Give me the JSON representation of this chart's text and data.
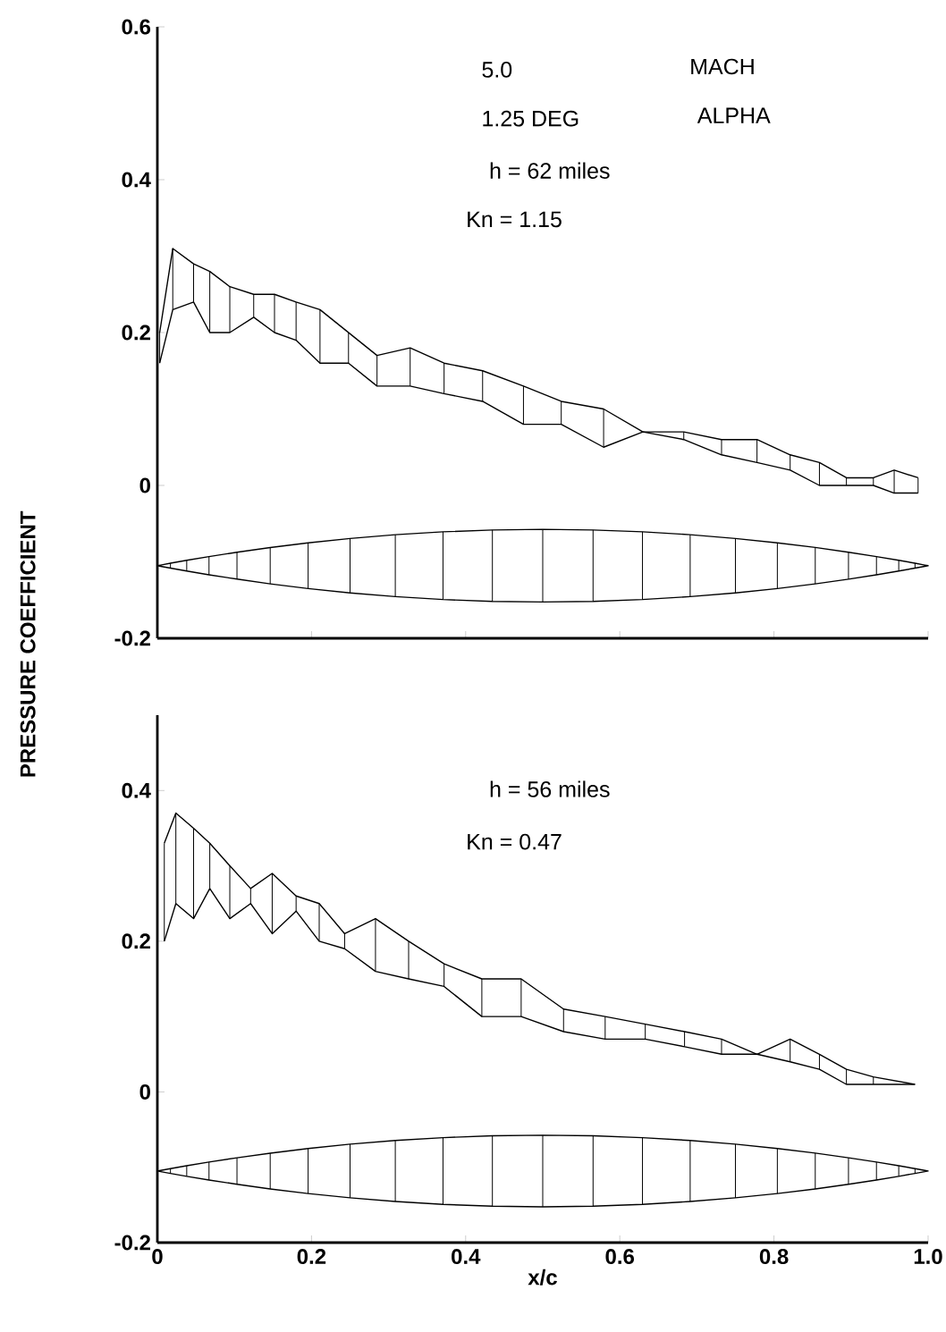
{
  "chart_data": [
    {
      "type": "line",
      "ylabel": "PRESSURE COEFFICIENT",
      "annotations": [
        "5.0",
        "MACH",
        "1.25 DEG",
        "ALPHA",
        "h = 62 miles",
        "Kn = 1.15"
      ],
      "xlim": [
        0,
        1
      ],
      "xticks": [
        0,
        0.2,
        0.4,
        0.6,
        0.8,
        1
      ],
      "ylim": [
        -0.2,
        0.6
      ],
      "yticks": [
        -0.2,
        0,
        0.2,
        0.4,
        0.6
      ],
      "tick_labels": "y",
      "marker": "none",
      "line_style": "solid",
      "series": [
        {
          "color": "#000000",
          "x": [
            0.003,
            0.02,
            0.047,
            0.068,
            0.094,
            0.125,
            0.152,
            0.18,
            0.211,
            0.248,
            0.285,
            0.328,
            0.372,
            0.422,
            0.475,
            0.524,
            0.579,
            0.63,
            0.683,
            0.732,
            0.778,
            0.821,
            0.859,
            0.894,
            0.929,
            0.956,
            0.987
          ],
          "values": [
            0.2,
            0.31,
            0.29,
            0.28,
            0.26,
            0.25,
            0.25,
            0.24,
            0.23,
            0.2,
            0.17,
            0.18,
            0.16,
            0.15,
            0.13,
            0.11,
            0.1,
            0.07,
            0.07,
            0.06,
            0.06,
            0.04,
            0.03,
            0.01,
            0.01,
            0.02,
            0.01
          ]
        },
        {
          "color": "#000000",
          "x": [
            0.003,
            0.02,
            0.047,
            0.068,
            0.094,
            0.125,
            0.152,
            0.18,
            0.211,
            0.248,
            0.285,
            0.328,
            0.372,
            0.422,
            0.475,
            0.524,
            0.579,
            0.63,
            0.683,
            0.732,
            0.778,
            0.821,
            0.859,
            0.894,
            0.929,
            0.956,
            0.987
          ],
          "values": [
            0.16,
            0.23,
            0.24,
            0.2,
            0.2,
            0.22,
            0.2,
            0.19,
            0.16,
            0.16,
            0.13,
            0.13,
            0.12,
            0.11,
            0.08,
            0.08,
            0.05,
            0.07,
            0.06,
            0.04,
            0.03,
            0.02,
            0.0,
            0.0,
            0.0,
            -0.01,
            -0.01
          ]
        }
      ]
    },
    {
      "type": "line",
      "xlabel": "x/c",
      "annotations": [
        "h = 56 miles",
        "Kn = 0.47"
      ],
      "xlim": [
        0,
        1
      ],
      "xticks": [
        0,
        0.2,
        0.4,
        0.6,
        0.8,
        {
          "value": 1,
          "label": "1.0"
        }
      ],
      "ylim": [
        -0.2,
        0.5
      ],
      "yticks": [
        -0.2,
        0,
        0.2,
        0.4
      ],
      "marker": "none",
      "line_style": "solid",
      "series": [
        {
          "color": "#000000",
          "x": [
            0.009,
            0.024,
            0.047,
            0.068,
            0.094,
            0.121,
            0.149,
            0.18,
            0.21,
            0.243,
            0.283,
            0.326,
            0.372,
            0.421,
            0.472,
            0.527,
            0.581,
            0.633,
            0.684,
            0.732,
            0.778,
            0.821,
            0.859,
            0.894,
            0.929,
            0.983
          ],
          "values": [
            0.33,
            0.37,
            0.35,
            0.33,
            0.3,
            0.27,
            0.29,
            0.26,
            0.25,
            0.21,
            0.23,
            0.2,
            0.17,
            0.15,
            0.15,
            0.11,
            0.1,
            0.09,
            0.08,
            0.07,
            0.05,
            0.07,
            0.05,
            0.03,
            0.02,
            0.01
          ]
        },
        {
          "color": "#000000",
          "x": [
            0.009,
            0.024,
            0.047,
            0.068,
            0.094,
            0.121,
            0.149,
            0.18,
            0.21,
            0.243,
            0.283,
            0.326,
            0.372,
            0.421,
            0.472,
            0.527,
            0.581,
            0.633,
            0.684,
            0.732,
            0.778,
            0.821,
            0.859,
            0.894,
            0.929,
            0.983
          ],
          "values": [
            0.2,
            0.25,
            0.23,
            0.27,
            0.23,
            0.25,
            0.21,
            0.24,
            0.2,
            0.19,
            0.16,
            0.15,
            0.14,
            0.1,
            0.1,
            0.08,
            0.07,
            0.07,
            0.06,
            0.05,
            0.05,
            0.04,
            0.03,
            0.01,
            0.01,
            0.01
          ]
        }
      ]
    }
  ]
}
